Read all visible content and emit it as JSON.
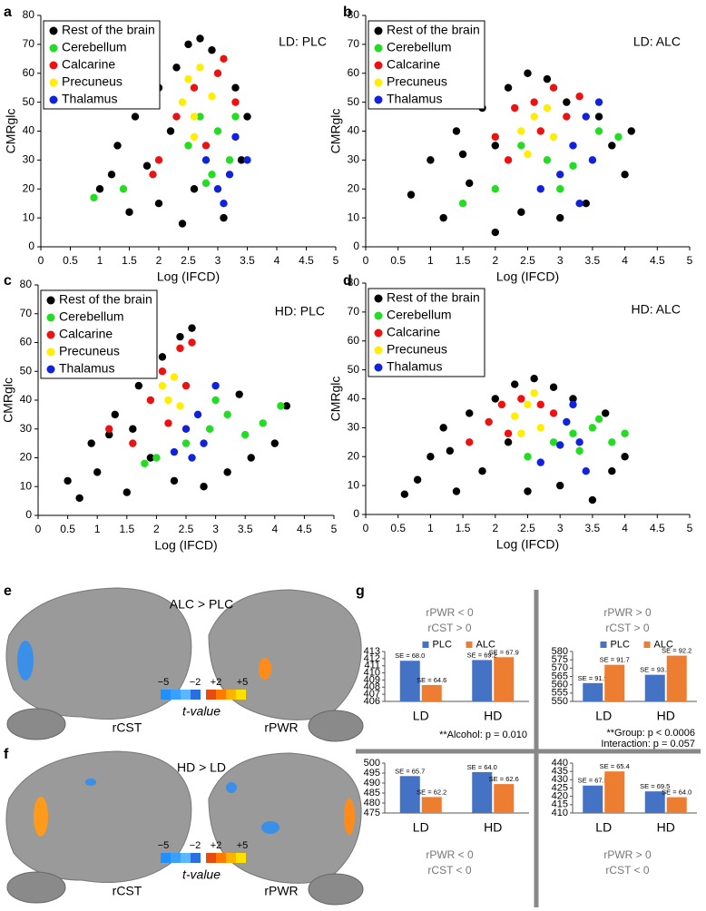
{
  "chart_data": [
    {
      "type": "scatter",
      "panel": "a",
      "annotation": "LD: PLC",
      "xlabel": "Log (IFCD)",
      "ylabel": "CMRglc",
      "xlim": [
        0,
        5
      ],
      "ylim": [
        0,
        80
      ],
      "xticks": [
        0,
        0.5,
        1,
        1.5,
        2,
        2.5,
        3,
        3.5,
        4,
        4.5,
        5
      ],
      "yticks": [
        0,
        10,
        20,
        30,
        40,
        50,
        60,
        70,
        80
      ],
      "series": [
        {
          "name": "Rest of the brain",
          "color": "#000000",
          "x": [
            1.0,
            1.3,
            1.5,
            1.6,
            1.8,
            2.0,
            2.0,
            2.2,
            2.3,
            2.4,
            2.5,
            2.7,
            2.9,
            3.1,
            3.3,
            3.4,
            3.5,
            1.2,
            1.9,
            2.6
          ],
          "y": [
            20,
            35,
            12,
            45,
            28,
            55,
            15,
            40,
            62,
            8,
            70,
            72,
            68,
            10,
            55,
            30,
            45,
            25,
            60,
            20
          ]
        },
        {
          "name": "Cerebellum",
          "color": "#22dd22",
          "x": [
            2.5,
            2.7,
            2.9,
            3.0,
            3.2,
            3.3,
            2.8,
            0.9,
            1.4
          ],
          "y": [
            35,
            45,
            25,
            40,
            30,
            45,
            22,
            17,
            20
          ]
        },
        {
          "name": "Calcarine",
          "color": "#ee1111",
          "x": [
            2.0,
            2.3,
            2.6,
            2.8,
            3.0,
            3.1,
            1.9,
            3.3
          ],
          "y": [
            30,
            45,
            55,
            35,
            60,
            65,
            25,
            50
          ]
        },
        {
          "name": "Precuneus",
          "color": "#ffee00",
          "x": [
            2.4,
            2.5,
            2.6,
            2.7,
            2.6,
            2.9
          ],
          "y": [
            50,
            58,
            45,
            62,
            38,
            52
          ]
        },
        {
          "name": "Thalamus",
          "color": "#1122dd",
          "x": [
            2.8,
            3.0,
            3.2,
            3.3,
            3.5,
            3.1
          ],
          "y": [
            30,
            20,
            25,
            38,
            30,
            15
          ]
        }
      ]
    },
    {
      "type": "scatter",
      "panel": "b",
      "annotation": "LD: ALC",
      "xlabel": "Log (IFCD)",
      "ylabel": "CMRglc",
      "xlim": [
        0,
        5
      ],
      "ylim": [
        0,
        80
      ],
      "xticks": [
        0,
        0.5,
        1,
        1.5,
        2,
        2.5,
        3,
        3.5,
        4,
        4.5,
        5
      ],
      "yticks": [
        0,
        10,
        20,
        30,
        40,
        50,
        60,
        70,
        80
      ],
      "series": [
        {
          "name": "Rest of the brain",
          "color": "#000000",
          "x": [
            0.7,
            1.0,
            1.2,
            1.4,
            1.6,
            1.8,
            2.0,
            2.2,
            2.5,
            2.8,
            3.1,
            3.4,
            3.6,
            3.8,
            4.0,
            4.1,
            1.5,
            2.4,
            3.0,
            2.0
          ],
          "y": [
            18,
            30,
            10,
            40,
            22,
            48,
            5,
            55,
            60,
            58,
            50,
            15,
            45,
            35,
            25,
            40,
            32,
            12,
            10,
            35
          ]
        },
        {
          "name": "Cerebellum",
          "color": "#22dd22",
          "x": [
            1.5,
            2.0,
            2.4,
            2.8,
            3.2,
            3.6,
            3.9,
            3.0
          ],
          "y": [
            15,
            20,
            35,
            30,
            28,
            40,
            38,
            20
          ]
        },
        {
          "name": "Calcarine",
          "color": "#ee1111",
          "x": [
            2.0,
            2.3,
            2.6,
            2.9,
            3.1,
            2.2,
            2.7,
            3.3
          ],
          "y": [
            38,
            48,
            50,
            55,
            45,
            30,
            40,
            52
          ]
        },
        {
          "name": "Precuneus",
          "color": "#ffee00",
          "x": [
            2.4,
            2.6,
            2.8,
            2.5,
            2.9
          ],
          "y": [
            40,
            45,
            48,
            32,
            38
          ]
        },
        {
          "name": "Thalamus",
          "color": "#1122dd",
          "x": [
            2.7,
            3.0,
            3.2,
            3.4,
            3.5,
            3.6,
            3.3
          ],
          "y": [
            20,
            25,
            35,
            45,
            30,
            50,
            15
          ]
        }
      ]
    },
    {
      "type": "scatter",
      "panel": "c",
      "annotation": "HD: PLC",
      "xlabel": "Log (IFCD)",
      "ylabel": "CMRglc",
      "xlim": [
        0,
        5
      ],
      "ylim": [
        0,
        80
      ],
      "xticks": [
        0,
        0.5,
        1,
        1.5,
        2,
        2.5,
        3,
        3.5,
        4,
        4.5,
        5
      ],
      "yticks": [
        0,
        10,
        20,
        30,
        40,
        50,
        60,
        70,
        80
      ],
      "series": [
        {
          "name": "Rest of the brain",
          "color": "#000000",
          "x": [
            0.5,
            0.7,
            0.9,
            1.0,
            1.3,
            1.5,
            1.7,
            1.9,
            2.1,
            2.4,
            2.6,
            2.8,
            3.2,
            3.6,
            4.0,
            4.2,
            1.2,
            2.3,
            1.6,
            3.4
          ],
          "y": [
            12,
            6,
            25,
            15,
            35,
            8,
            45,
            20,
            55,
            62,
            65,
            10,
            15,
            20,
            25,
            38,
            28,
            12,
            30,
            42
          ]
        },
        {
          "name": "Cerebellum",
          "color": "#22dd22",
          "x": [
            2.0,
            2.5,
            2.9,
            3.2,
            3.5,
            3.8,
            4.1,
            3.0,
            1.8
          ],
          "y": [
            20,
            25,
            30,
            35,
            28,
            32,
            38,
            40,
            18
          ]
        },
        {
          "name": "Calcarine",
          "color": "#ee1111",
          "x": [
            1.2,
            1.6,
            1.9,
            2.1,
            2.4,
            2.6,
            2.2,
            2.5
          ],
          "y": [
            30,
            25,
            40,
            50,
            58,
            60,
            32,
            45
          ]
        },
        {
          "name": "Precuneus",
          "color": "#ffee00",
          "x": [
            2.1,
            2.2,
            2.3,
            2.4
          ],
          "y": [
            45,
            40,
            48,
            38
          ]
        },
        {
          "name": "Thalamus",
          "color": "#1122dd",
          "x": [
            2.3,
            2.5,
            2.7,
            2.8,
            3.0,
            2.6
          ],
          "y": [
            22,
            30,
            35,
            25,
            45,
            20
          ]
        }
      ]
    },
    {
      "type": "scatter",
      "panel": "d",
      "annotation": "HD: ALC",
      "xlabel": "Log (IFCD)",
      "ylabel": "CMRglc",
      "xlim": [
        0,
        5
      ],
      "ylim": [
        0,
        80
      ],
      "xticks": [
        0,
        0.5,
        1,
        1.5,
        2,
        2.5,
        3,
        3.5,
        4,
        4.5,
        5
      ],
      "yticks": [
        0,
        10,
        20,
        30,
        40,
        50,
        60,
        70,
        80
      ],
      "series": [
        {
          "name": "Rest of the brain",
          "color": "#000000",
          "x": [
            0.6,
            0.8,
            1.0,
            1.2,
            1.4,
            1.6,
            1.8,
            2.0,
            2.3,
            2.6,
            2.9,
            3.2,
            3.5,
            3.8,
            4.0,
            2.5,
            1.3,
            3.0,
            2.2,
            3.7
          ],
          "y": [
            7,
            12,
            20,
            30,
            8,
            35,
            15,
            40,
            45,
            47,
            44,
            40,
            5,
            15,
            20,
            8,
            22,
            10,
            25,
            35
          ]
        },
        {
          "name": "Cerebellum",
          "color": "#22dd22",
          "x": [
            2.5,
            2.9,
            3.2,
            3.5,
            3.8,
            4.0,
            3.3,
            3.6
          ],
          "y": [
            20,
            25,
            28,
            30,
            25,
            28,
            22,
            33
          ]
        },
        {
          "name": "Calcarine",
          "color": "#ee1111",
          "x": [
            1.6,
            1.9,
            2.1,
            2.4,
            2.7,
            2.2,
            2.9
          ],
          "y": [
            25,
            32,
            38,
            40,
            38,
            28,
            35
          ]
        },
        {
          "name": "Precuneus",
          "color": "#ffee00",
          "x": [
            2.3,
            2.5,
            2.6,
            2.7,
            2.4
          ],
          "y": [
            34,
            38,
            42,
            30,
            28
          ]
        },
        {
          "name": "Thalamus",
          "color": "#1122dd",
          "x": [
            2.7,
            3.0,
            3.1,
            3.3,
            3.2,
            3.4
          ],
          "y": [
            18,
            24,
            32,
            25,
            38,
            15
          ]
        }
      ]
    },
    {
      "type": "bar",
      "title": [
        "rPWR < 0",
        "rCST > 0"
      ],
      "categories": [
        "LD",
        "HD"
      ],
      "ylim": [
        406,
        413
      ],
      "yticks": [
        406,
        407,
        408,
        409,
        410,
        411,
        412,
        413
      ],
      "series": [
        {
          "name": "PLC",
          "color": "#4472c4",
          "values": [
            411.7,
            411.8
          ],
          "annotations": [
            "SE = 68.0",
            "SE = 69.2"
          ]
        },
        {
          "name": "ALC",
          "color": "#ed7d31",
          "values": [
            408.3,
            412.2
          ],
          "annotations": [
            "SE = 64.6",
            "SE = 67.9"
          ]
        }
      ]
    },
    {
      "type": "bar",
      "title": [
        "rPWR > 0",
        "rCST > 0"
      ],
      "categories": [
        "LD",
        "HD"
      ],
      "ylim": [
        550,
        580
      ],
      "yticks": [
        550,
        555,
        560,
        565,
        570,
        575,
        580
      ],
      "series": [
        {
          "name": "PLC",
          "color": "#4472c4",
          "values": [
            561,
            566
          ],
          "annotations": [
            "SE = 91.9",
            "SE = 93.3"
          ]
        },
        {
          "name": "ALC",
          "color": "#ed7d31",
          "values": [
            572,
            577.5
          ],
          "annotations": [
            "SE = 91.7",
            "SE = 92.2"
          ]
        }
      ]
    },
    {
      "type": "bar",
      "title": [
        "rPWR < 0",
        "rCST < 0"
      ],
      "note": [
        "**Alcohol: p = 0.010"
      ],
      "categories": [
        "LD",
        "HD"
      ],
      "ylim": [
        475,
        500
      ],
      "yticks": [
        475,
        480,
        485,
        490,
        495,
        500
      ],
      "series": [
        {
          "color": "#4472c4",
          "values": [
            493.5,
            495.5
          ],
          "annotations": [
            "SE = 65.7",
            "SE = 64.0"
          ]
        },
        {
          "color": "#ed7d31",
          "values": [
            483,
            489.5
          ],
          "annotations": [
            "SE = 62.2",
            "SE = 62.6"
          ]
        }
      ]
    },
    {
      "type": "bar",
      "title": [
        "rPWR > 0",
        "rCST < 0"
      ],
      "note": [
        "**Group: p < 0.0006",
        "Interaction: p = 0.057"
      ],
      "categories": [
        "LD",
        "HD"
      ],
      "ylim": [
        410,
        440
      ],
      "yticks": [
        410,
        415,
        420,
        425,
        430,
        435,
        440
      ],
      "series": [
        {
          "color": "#4472c4",
          "values": [
            426.5,
            423
          ],
          "annotations": [
            "SE = 67.5",
            "SE = 69.5"
          ]
        },
        {
          "color": "#ed7d31",
          "values": [
            435,
            419.5
          ],
          "annotations": [
            "SE = 65.4",
            "SE = 64.0"
          ]
        }
      ]
    }
  ],
  "brain_panels": [
    {
      "panel": "e",
      "title": "ALC > PLC",
      "left": "rCST",
      "right": "rPWR",
      "ticks": [
        "−5",
        "−2",
        "+2",
        "+5"
      ],
      "scale_label": "t-value"
    },
    {
      "panel": "f",
      "title": "HD > LD",
      "left": "rCST",
      "right": "rPWR",
      "ticks": [
        "−5",
        "−2",
        "+2",
        "+5"
      ],
      "scale_label": "t-value"
    }
  ],
  "panel_g": "g"
}
